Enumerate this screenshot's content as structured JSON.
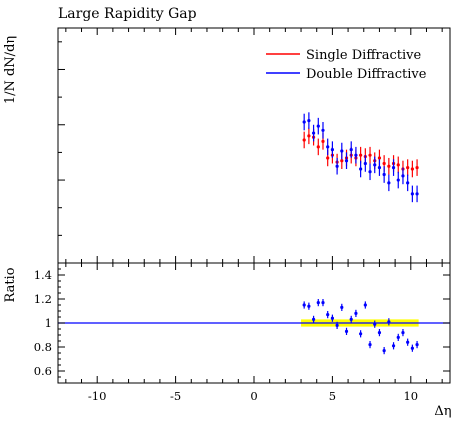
{
  "chart_data": [
    {
      "type": "scatter",
      "title": "Large Rapidity Gap",
      "xlabel": "",
      "ylabel": "1/N dN/dη",
      "xlim": [
        -12.5,
        12.5
      ],
      "y_ticks_labeled": false,
      "legend_position": "top-right",
      "series": [
        {
          "name": "Single Diffractive",
          "color": "#ff0000",
          "points": [
            {
              "x": 3.2,
              "y": 0.445,
              "err": 0.03
            },
            {
              "x": 3.5,
              "y": 0.46,
              "err": 0.03
            },
            {
              "x": 3.8,
              "y": 0.455,
              "err": 0.03
            },
            {
              "x": 4.1,
              "y": 0.42,
              "err": 0.03
            },
            {
              "x": 4.4,
              "y": 0.44,
              "err": 0.03
            },
            {
              "x": 4.7,
              "y": 0.38,
              "err": 0.03
            },
            {
              "x": 5.0,
              "y": 0.39,
              "err": 0.03
            },
            {
              "x": 5.3,
              "y": 0.365,
              "err": 0.03
            },
            {
              "x": 5.6,
              "y": 0.37,
              "err": 0.03
            },
            {
              "x": 5.9,
              "y": 0.38,
              "err": 0.03
            },
            {
              "x": 6.2,
              "y": 0.39,
              "err": 0.03
            },
            {
              "x": 6.5,
              "y": 0.38,
              "err": 0.03
            },
            {
              "x": 6.8,
              "y": 0.39,
              "err": 0.03
            },
            {
              "x": 7.1,
              "y": 0.385,
              "err": 0.03
            },
            {
              "x": 7.4,
              "y": 0.39,
              "err": 0.03
            },
            {
              "x": 7.7,
              "y": 0.37,
              "err": 0.03
            },
            {
              "x": 8.0,
              "y": 0.38,
              "err": 0.03
            },
            {
              "x": 8.3,
              "y": 0.36,
              "err": 0.03
            },
            {
              "x": 8.6,
              "y": 0.35,
              "err": 0.03
            },
            {
              "x": 8.9,
              "y": 0.36,
              "err": 0.03
            },
            {
              "x": 9.2,
              "y": 0.355,
              "err": 0.03
            },
            {
              "x": 9.5,
              "y": 0.34,
              "err": 0.03
            },
            {
              "x": 9.8,
              "y": 0.345,
              "err": 0.03
            },
            {
              "x": 10.1,
              "y": 0.34,
              "err": 0.03
            },
            {
              "x": 10.4,
              "y": 0.345,
              "err": 0.03
            }
          ]
        },
        {
          "name": "Double Diffractive",
          "color": "#0000ff",
          "points": [
            {
              "x": 3.2,
              "y": 0.51,
              "err": 0.03
            },
            {
              "x": 3.5,
              "y": 0.515,
              "err": 0.03
            },
            {
              "x": 3.8,
              "y": 0.47,
              "err": 0.03
            },
            {
              "x": 4.1,
              "y": 0.495,
              "err": 0.03
            },
            {
              "x": 4.4,
              "y": 0.48,
              "err": 0.03
            },
            {
              "x": 4.7,
              "y": 0.42,
              "err": 0.03
            },
            {
              "x": 5.0,
              "y": 0.41,
              "err": 0.03
            },
            {
              "x": 5.3,
              "y": 0.35,
              "err": 0.03
            },
            {
              "x": 5.6,
              "y": 0.405,
              "err": 0.03
            },
            {
              "x": 5.9,
              "y": 0.37,
              "err": 0.03
            },
            {
              "x": 6.2,
              "y": 0.41,
              "err": 0.03
            },
            {
              "x": 6.5,
              "y": 0.39,
              "err": 0.03
            },
            {
              "x": 6.8,
              "y": 0.34,
              "err": 0.03
            },
            {
              "x": 7.1,
              "y": 0.36,
              "err": 0.03
            },
            {
              "x": 7.4,
              "y": 0.33,
              "err": 0.03
            },
            {
              "x": 7.7,
              "y": 0.355,
              "err": 0.03
            },
            {
              "x": 8.0,
              "y": 0.345,
              "err": 0.03
            },
            {
              "x": 8.3,
              "y": 0.32,
              "err": 0.03
            },
            {
              "x": 8.6,
              "y": 0.29,
              "err": 0.03
            },
            {
              "x": 8.9,
              "y": 0.345,
              "err": 0.03
            },
            {
              "x": 9.2,
              "y": 0.3,
              "err": 0.03
            },
            {
              "x": 9.5,
              "y": 0.315,
              "err": 0.03
            },
            {
              "x": 9.8,
              "y": 0.29,
              "err": 0.03
            },
            {
              "x": 10.1,
              "y": 0.25,
              "err": 0.03
            },
            {
              "x": 10.4,
              "y": 0.25,
              "err": 0.03
            }
          ]
        }
      ]
    },
    {
      "type": "scatter",
      "title": "",
      "xlabel": "Δη",
      "ylabel": "Ratio",
      "xlim": [
        -12.5,
        12.5
      ],
      "ylim": [
        0.5,
        1.5
      ],
      "x_ticks": [
        -10,
        -5,
        0,
        5,
        10
      ],
      "y_ticks": [
        0.6,
        0.8,
        1,
        1.2,
        1.4
      ],
      "reference_line": {
        "y": 1.0,
        "color": "#0000ff"
      },
      "reference_band": {
        "x": [
          3.0,
          10.5
        ],
        "y": [
          0.97,
          1.03
        ],
        "color": "#ffff00"
      },
      "series": [
        {
          "name": "Double Diffractive",
          "color": "#0000ff",
          "points": [
            {
              "x": 3.2,
              "y": 1.15,
              "err": 0.03
            },
            {
              "x": 3.5,
              "y": 1.14,
              "err": 0.03
            },
            {
              "x": 3.8,
              "y": 1.03,
              "err": 0.03
            },
            {
              "x": 4.1,
              "y": 1.17,
              "err": 0.03
            },
            {
              "x": 4.4,
              "y": 1.17,
              "err": 0.03
            },
            {
              "x": 4.7,
              "y": 1.07,
              "err": 0.03
            },
            {
              "x": 5.0,
              "y": 1.04,
              "err": 0.03
            },
            {
              "x": 5.3,
              "y": 0.98,
              "err": 0.03
            },
            {
              "x": 5.6,
              "y": 1.13,
              "err": 0.03
            },
            {
              "x": 5.9,
              "y": 0.93,
              "err": 0.03
            },
            {
              "x": 6.2,
              "y": 1.03,
              "err": 0.03
            },
            {
              "x": 6.5,
              "y": 1.08,
              "err": 0.03
            },
            {
              "x": 6.8,
              "y": 0.91,
              "err": 0.03
            },
            {
              "x": 7.1,
              "y": 1.15,
              "err": 0.03
            },
            {
              "x": 7.4,
              "y": 0.82,
              "err": 0.03
            },
            {
              "x": 7.7,
              "y": 0.99,
              "err": 0.03
            },
            {
              "x": 8.0,
              "y": 0.92,
              "err": 0.03
            },
            {
              "x": 8.3,
              "y": 0.77,
              "err": 0.03
            },
            {
              "x": 8.6,
              "y": 1.01,
              "err": 0.03
            },
            {
              "x": 8.9,
              "y": 0.81,
              "err": 0.03
            },
            {
              "x": 9.2,
              "y": 0.88,
              "err": 0.03
            },
            {
              "x": 9.5,
              "y": 0.92,
              "err": 0.03
            },
            {
              "x": 9.8,
              "y": 0.84,
              "err": 0.03
            },
            {
              "x": 10.1,
              "y": 0.79,
              "err": 0.03
            },
            {
              "x": 10.4,
              "y": 0.82,
              "err": 0.03
            }
          ]
        }
      ]
    }
  ]
}
